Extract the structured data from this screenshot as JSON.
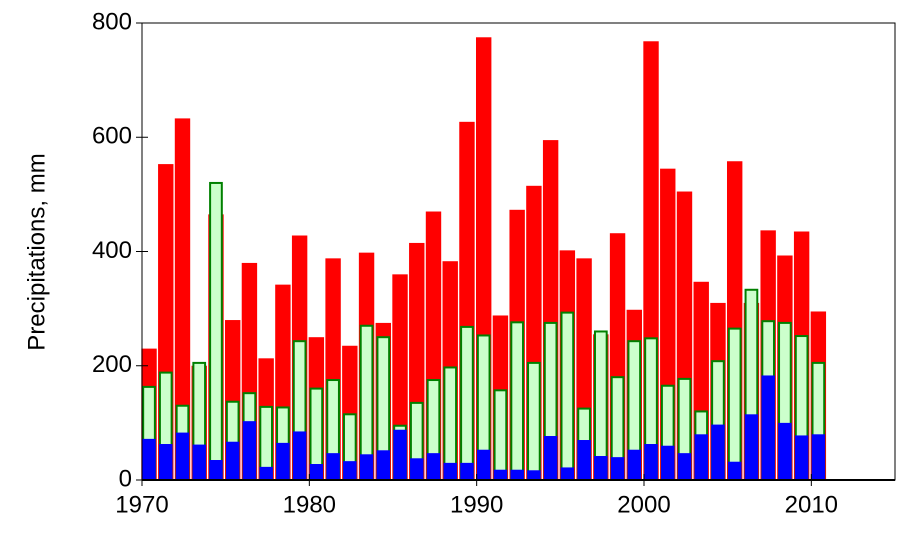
{
  "chart_data": {
    "type": "bar",
    "overlap": true,
    "y_label": "Precipitations, mm",
    "x": [
      1970,
      1971,
      1972,
      1973,
      1974,
      1975,
      1976,
      1977,
      1978,
      1979,
      1980,
      1981,
      1982,
      1983,
      1984,
      1985,
      1986,
      1987,
      1988,
      1989,
      1990,
      1991,
      1992,
      1993,
      1994,
      1995,
      1996,
      1997,
      1998,
      1999,
      2000,
      2001,
      2002,
      2003,
      2004,
      2005,
      2006,
      2007,
      2008,
      2009,
      2010
    ],
    "series": [
      {
        "color": "#ff0000",
        "values": [
          230,
          553,
          633,
          200,
          465,
          280,
          380,
          213,
          342,
          428,
          250,
          388,
          235,
          398,
          275,
          360,
          415,
          470,
          383,
          627,
          775,
          288,
          473,
          515,
          595,
          402,
          388,
          255,
          432,
          298,
          768,
          545,
          505,
          347,
          310,
          558,
          310,
          437,
          393,
          435,
          295
        ]
      },
      {
        "color": "#ccffcc",
        "edge": "#008000",
        "values": [
          163,
          188,
          130,
          205,
          520,
          137,
          152,
          128,
          127,
          243,
          160,
          175,
          115,
          270,
          250,
          95,
          135,
          175,
          197,
          268,
          253,
          157,
          276,
          205,
          275,
          293,
          125,
          260,
          180,
          243,
          248,
          165,
          177,
          120,
          208,
          265,
          333,
          278,
          275,
          252,
          205
        ]
      },
      {
        "color": "#0000ff",
        "values": [
          72,
          63,
          83,
          62,
          35,
          67,
          103,
          23,
          65,
          85,
          28,
          47,
          33,
          45,
          52,
          88,
          38,
          47,
          30,
          30,
          53,
          18,
          18,
          17,
          77,
          22,
          70,
          42,
          40,
          53,
          63,
          60,
          47,
          80,
          97,
          32,
          115,
          183,
          100,
          78,
          80
        ]
      }
    ],
    "xlim": [
      1970,
      2015
    ],
    "xticks": [
      1970,
      1980,
      1990,
      2000,
      2010
    ],
    "ylim": [
      0,
      800
    ],
    "yticks": [
      0,
      200,
      400,
      600,
      800
    ],
    "grid": false
  }
}
